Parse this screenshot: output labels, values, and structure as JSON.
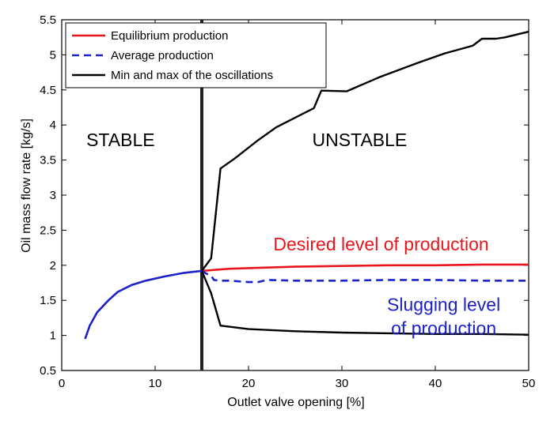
{
  "chart_data": {
    "type": "line",
    "title": "",
    "xlabel": "Outlet valve opening [%]",
    "ylabel": "Oil mass flow rate [kg/s]",
    "xlim": [
      0,
      50
    ],
    "ylim": [
      0.5,
      5.5
    ],
    "xticks": [
      "0",
      "10",
      "20",
      "30",
      "40",
      "50"
    ],
    "yticks": [
      "0.5",
      "1",
      "1.5",
      "2",
      "2.5",
      "3",
      "3.5",
      "4",
      "4.5",
      "5",
      "5.5"
    ],
    "grid": false,
    "legend_position": "top-left",
    "legend": [
      "Equilibrium production",
      "Average production",
      "Min and max of the oscillations"
    ],
    "colors": {
      "equilibrium_unstable": "#e8161c",
      "stable_branch": "#1c22c8",
      "average": "#1c22c8",
      "oscillation": "#000000",
      "boundary": "#222222",
      "annot_red": "#e8161c",
      "annot_blue": "#1c22c8"
    },
    "series": [
      {
        "name": "Equilibrium production",
        "style": "solid",
        "x": [
          15,
          16,
          17,
          18,
          20,
          25,
          30,
          35,
          40,
          45,
          50
        ],
        "y": [
          1.92,
          1.93,
          1.94,
          1.95,
          1.96,
          1.98,
          1.99,
          2.0,
          2.0,
          2.01,
          2.01
        ]
      },
      {
        "name": "Average production",
        "style": "dashed",
        "x": [
          15,
          15.5,
          16,
          16.3,
          17,
          18,
          20,
          21,
          22,
          25,
          30,
          35,
          40,
          45,
          50
        ],
        "y": [
          1.92,
          1.88,
          1.85,
          1.79,
          1.78,
          1.78,
          1.76,
          1.76,
          1.79,
          1.78,
          1.78,
          1.79,
          1.79,
          1.78,
          1.78
        ]
      },
      {
        "name": "Min and max of the oscillations",
        "style": "solid",
        "segments": [
          {
            "x": [
              15,
              16,
              17,
              18.5,
              21,
              23,
              27,
              27.8,
              30.5,
              34,
              38,
              41,
              44,
              45,
              46.5,
              47.5,
              50
            ],
            "y": [
              1.92,
              2.1,
              3.38,
              3.52,
              3.78,
              3.97,
              4.24,
              4.49,
              4.48,
              4.68,
              4.88,
              5.02,
              5.13,
              5.23,
              5.23,
              5.25,
              5.33
            ]
          },
          {
            "x": [
              15,
              16,
              17,
              20,
              25,
              30,
              35,
              40,
              45,
              50
            ],
            "y": [
              1.92,
              1.6,
              1.14,
              1.09,
              1.06,
              1.04,
              1.03,
              1.02,
              1.02,
              1.01
            ]
          }
        ]
      },
      {
        "stable_branch": true,
        "style": "solid",
        "x": [
          2.5,
          3,
          3.8,
          5,
          6,
          7.5,
          9,
          11,
          13,
          15
        ],
        "y": [
          0.95,
          1.14,
          1.33,
          1.5,
          1.62,
          1.72,
          1.78,
          1.84,
          1.89,
          1.92
        ]
      }
    ],
    "boundary_x": 15,
    "annotations": [
      {
        "text": "STABLE",
        "x": 6.3,
        "y": 3.7,
        "color": "#000000"
      },
      {
        "text": "UNSTABLE",
        "x": 31.9,
        "y": 3.7,
        "color": "#000000"
      },
      {
        "text": "Desired level of production",
        "x": 34.2,
        "y": 2.21,
        "color": "#e8161c"
      },
      {
        "text": "Slugging level\nof production",
        "x": 40.9,
        "y": 1.35,
        "color": "#1c22c8"
      }
    ]
  }
}
